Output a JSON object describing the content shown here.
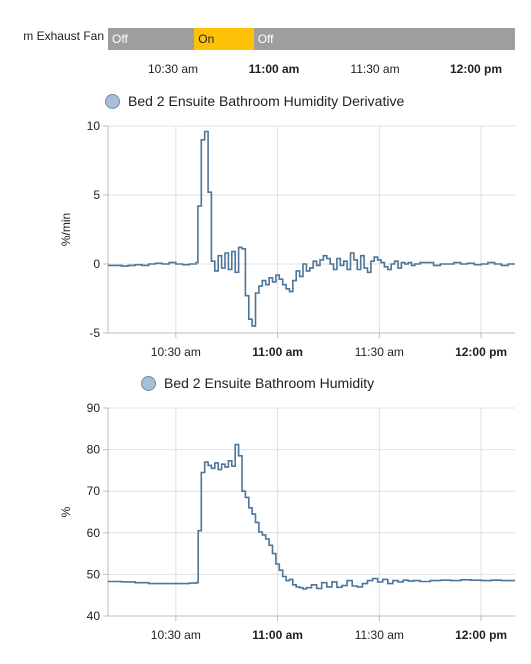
{
  "timeline": {
    "label": "m Exhaust Fan",
    "segments": [
      {
        "state": "Off",
        "start": 0.0,
        "end": 0.212
      },
      {
        "state": "On",
        "start": 0.212,
        "end": 0.358
      },
      {
        "state": "Off",
        "start": 0.358,
        "end": 1.0
      }
    ],
    "colors": {
      "Off": "#9e9e9e",
      "On": "#ffc107"
    },
    "ticks": [
      {
        "label": "10:30 am",
        "bold": false
      },
      {
        "label": "11:00 am",
        "bold": true
      },
      {
        "label": "11:30 am",
        "bold": false
      },
      {
        "label": "12:00 pm",
        "bold": true
      }
    ]
  },
  "chart_data": [
    {
      "type": "line",
      "legend": "Bed 2 Ensuite Bathroom Humidity Derivative",
      "ylabel": "%/min",
      "ylim": [
        -5,
        10
      ],
      "yticks": [
        10,
        5,
        0,
        -5
      ],
      "xticks": [
        {
          "label": "10:30 am",
          "bold": false
        },
        {
          "label": "11:00 am",
          "bold": true
        },
        {
          "label": "11:30 am",
          "bold": false
        },
        {
          "label": "12:00 pm",
          "bold": true
        }
      ],
      "xlim_minutes": [
        10,
        130
      ],
      "xtick_minutes": [
        30,
        60,
        90,
        120
      ],
      "color": "#4c7599",
      "grid": true,
      "series": {
        "step": true,
        "x": [
          10,
          12,
          14,
          16,
          18,
          20,
          22,
          24,
          26,
          28,
          30,
          32,
          34,
          36,
          36.5,
          37.5,
          38.5,
          39.5,
          40.5,
          41.5,
          42.5,
          43.5,
          44.5,
          45.5,
          46.5,
          47.5,
          48.5,
          49.5,
          50.5,
          51.5,
          52.5,
          53.5,
          54.5,
          55.5,
          56.5,
          57.5,
          58.5,
          59.5,
          60.5,
          61.5,
          62.5,
          63.5,
          64.5,
          65.5,
          66.5,
          67.5,
          68.5,
          69.5,
          70.5,
          71.5,
          72.5,
          73.5,
          74.5,
          75.5,
          76.5,
          77.5,
          78.5,
          79.5,
          80.5,
          81.5,
          82.5,
          83.5,
          84.5,
          85.5,
          86.5,
          87.5,
          88.5,
          89.5,
          90.5,
          91.5,
          92.5,
          93.5,
          94.5,
          95.5,
          96.5,
          97.5,
          98.5,
          99.5,
          100.5,
          102,
          104,
          106,
          108,
          110,
          112,
          114,
          116,
          118,
          120,
          122,
          124,
          126,
          128,
          130
        ],
        "y": [
          -0.1,
          -0.1,
          -0.15,
          -0.1,
          -0.05,
          -0.1,
          0.0,
          0.05,
          0.0,
          0.1,
          0.0,
          -0.05,
          0.0,
          0.1,
          4.2,
          9.0,
          9.6,
          5.2,
          0.2,
          -0.5,
          0.6,
          -0.3,
          0.8,
          -0.4,
          0.9,
          -0.6,
          1.2,
          1.1,
          -2.3,
          -4.0,
          -4.5,
          -2.1,
          -1.6,
          -1.2,
          -1.5,
          -1.0,
          -1.3,
          -0.8,
          -1.1,
          -1.5,
          -1.8,
          -2.0,
          -1.2,
          -0.5,
          -0.9,
          0.0,
          -0.5,
          -0.3,
          0.2,
          -0.1,
          0.3,
          0.6,
          0.4,
          0.0,
          -0.4,
          0.4,
          -0.1,
          0.2,
          -0.4,
          0.8,
          0.3,
          -0.4,
          0.6,
          -0.3,
          -0.6,
          0.2,
          0.5,
          0.3,
          0.1,
          -0.2,
          -0.4,
          0.0,
          0.2,
          -0.3,
          0.1,
          0.0,
          0.1,
          -0.1,
          0.0,
          0.1,
          0.1,
          -0.1,
          0.0,
          0.0,
          0.1,
          0.0,
          0.05,
          -0.05,
          0.0,
          0.1,
          0.0,
          -0.1,
          0.0,
          0.0
        ]
      }
    },
    {
      "type": "line",
      "legend": "Bed 2 Ensuite Bathroom Humidity",
      "ylabel": "%",
      "ylim": [
        40,
        90
      ],
      "yticks": [
        90,
        80,
        70,
        60,
        50,
        40
      ],
      "xticks": [
        {
          "label": "10:30 am",
          "bold": false
        },
        {
          "label": "11:00 am",
          "bold": true
        },
        {
          "label": "11:30 am",
          "bold": false
        },
        {
          "label": "12:00 pm",
          "bold": true
        }
      ],
      "xlim_minutes": [
        10,
        130
      ],
      "xtick_minutes": [
        30,
        60,
        90,
        120
      ],
      "color": "#4c7599",
      "grid": true,
      "series": {
        "step": true,
        "x": [
          10,
          14,
          18,
          22,
          26,
          30,
          34,
          36,
          36.6,
          37.5,
          38.5,
          39.5,
          40.5,
          41.5,
          42.5,
          43.5,
          44.5,
          45.5,
          46.5,
          47.5,
          48.5,
          49.5,
          50.5,
          51.5,
          52.5,
          53.5,
          54.5,
          55.5,
          56.5,
          57.5,
          58.5,
          59.5,
          60.5,
          61.5,
          62.5,
          63.5,
          64.5,
          65.5,
          66.5,
          67.5,
          68.5,
          70,
          71.5,
          73,
          74.5,
          76,
          77.5,
          79,
          80.5,
          82,
          83.5,
          85,
          86.5,
          88,
          89.5,
          91,
          92.5,
          94,
          95.5,
          97,
          98.5,
          100,
          102,
          105,
          108,
          111,
          114,
          117,
          120,
          123,
          126,
          130
        ],
        "y": [
          48.3,
          48.2,
          48.0,
          47.8,
          47.8,
          47.8,
          47.9,
          48.0,
          60.5,
          74.5,
          77.0,
          76.2,
          75.5,
          76.8,
          75.2,
          76.5,
          75.8,
          77.3,
          76.0,
          81.2,
          78.5,
          70.0,
          68.5,
          66.0,
          64.5,
          62.5,
          60.2,
          59.5,
          58.5,
          57.0,
          55.0,
          52.5,
          51.0,
          49.5,
          48.5,
          48.8,
          47.5,
          47.0,
          46.8,
          46.5,
          46.8,
          47.5,
          46.6,
          48.0,
          47.0,
          48.2,
          46.9,
          47.3,
          48.5,
          47.2,
          47.0,
          47.8,
          48.5,
          49.0,
          48.2,
          48.8,
          47.8,
          48.5,
          48.2,
          48.6,
          48.4,
          48.5,
          48.3,
          48.5,
          48.6,
          48.5,
          48.7,
          48.6,
          48.5,
          48.6,
          48.5,
          48.5
        ]
      }
    }
  ]
}
